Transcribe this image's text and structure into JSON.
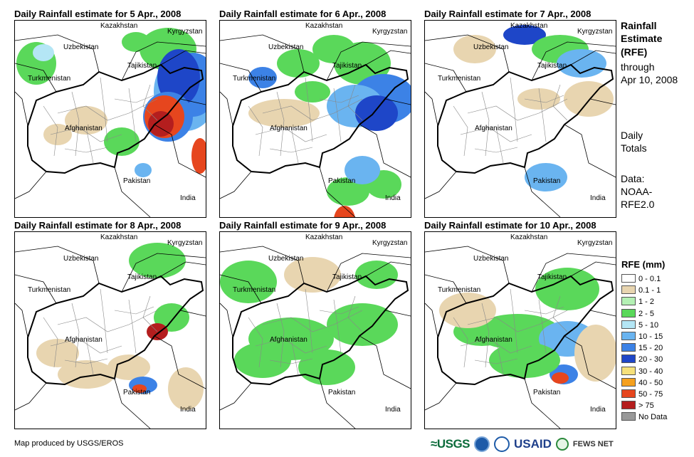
{
  "panels": [
    {
      "title": "Daily Rainfall estimate for 5 Apr., 2008",
      "day": 5
    },
    {
      "title": "Daily Rainfall estimate for 6 Apr., 2008",
      "day": 6
    },
    {
      "title": "Daily Rainfall estimate for 7 Apr., 2008",
      "day": 7
    },
    {
      "title": "Daily Rainfall estimate for 8 Apr., 2008",
      "day": 8
    },
    {
      "title": "Daily Rainfall estimate for 9 Apr., 2008",
      "day": 9
    },
    {
      "title": "Daily Rainfall estimate for 10 Apr., 2008",
      "day": 10
    }
  ],
  "country_labels": {
    "kazakhstan": "Kazakhstan",
    "kyrgyzstan": "Kyrgyzstan",
    "uzbekistan": "Uzbekistan",
    "tajikistan": "Tajikistan",
    "turkmenistan": "Turkmenistan",
    "afghanistan": "Afghanistan",
    "pakistan": "Pakistan",
    "india": "India"
  },
  "side_info": {
    "heading_1": "Rainfall",
    "heading_2": "Estimate",
    "heading_3": "(RFE)",
    "through_1": "through",
    "through_2": "Apr 10, 2008",
    "daily_1": "Daily",
    "daily_2": "Totals",
    "data_1": "Data:",
    "data_2": "NOAA-",
    "data_3": "RFE2.0"
  },
  "legend": {
    "title": "RFE (mm)",
    "items": [
      {
        "label": "0 - 0.1",
        "color": "#ffffff"
      },
      {
        "label": "0.1 - 1",
        "color": "#e8d5b0"
      },
      {
        "label": "1 - 2",
        "color": "#b4f0b4"
      },
      {
        "label": "2 - 5",
        "color": "#5ad85a"
      },
      {
        "label": "5 - 10",
        "color": "#b4e6f5"
      },
      {
        "label": "10 - 15",
        "color": "#6ab4f0"
      },
      {
        "label": "15 - 20",
        "color": "#3c82e6"
      },
      {
        "label": "20 - 30",
        "color": "#1e46c8"
      },
      {
        "label": "30 - 40",
        "color": "#f5e07a"
      },
      {
        "label": "40 - 50",
        "color": "#f5a01e"
      },
      {
        "label": "50 - 75",
        "color": "#e6461e"
      },
      {
        "label": "> 75",
        "color": "#b41e1e"
      },
      {
        "label": "No Data",
        "color": "#999999"
      }
    ]
  },
  "credit": "Map produced by USGS/EROS",
  "logos": {
    "usgs": "≈USGS",
    "usaid": "USAID",
    "fews": "FEWS NET"
  }
}
